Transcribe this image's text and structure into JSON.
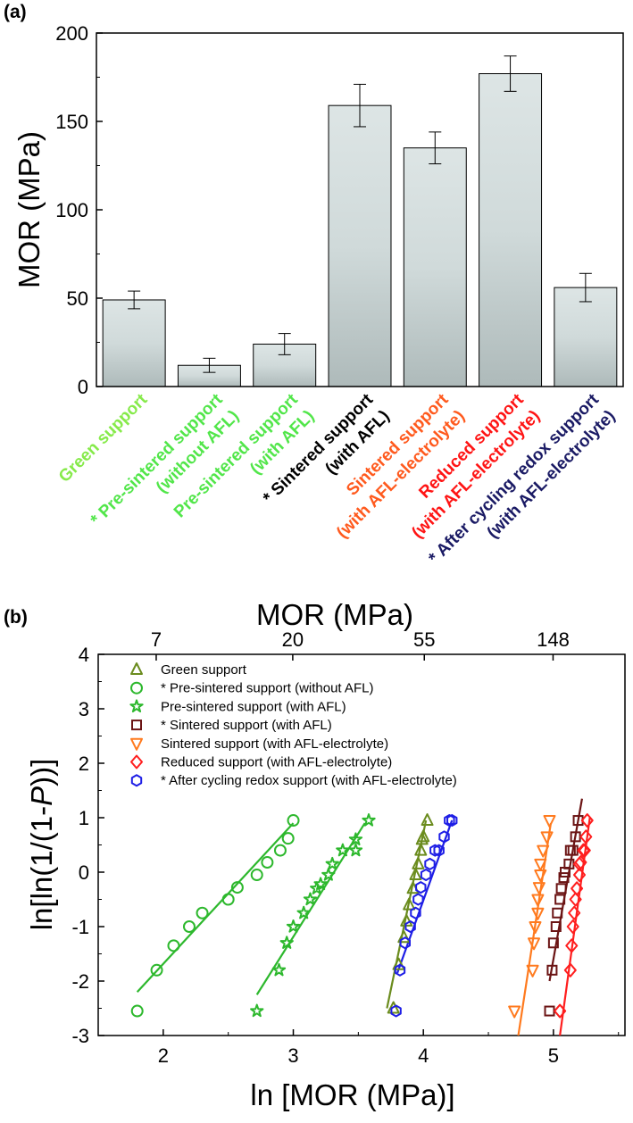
{
  "chart_data": [
    {
      "panel": "(a)",
      "type": "bar",
      "ylabel": "MOR (MPa)",
      "ylim": [
        0,
        200
      ],
      "yticks": [
        0,
        50,
        100,
        150,
        200
      ],
      "bar_fill": "#c8d2d2",
      "categories": [
        {
          "lines": [
            "Green support"
          ],
          "color": "#86ea4a"
        },
        {
          "lines": [
            "* Pre-sintered support",
            "(without AFL)"
          ],
          "color": "#52e64a"
        },
        {
          "lines": [
            "Pre-sintered support",
            "(with AFL)"
          ],
          "color": "#52e64a"
        },
        {
          "lines": [
            "* Sintered support",
            "(with AFL)"
          ],
          "color": "#000000"
        },
        {
          "lines": [
            "Sintered support",
            "(with AFL-electrolyte)"
          ],
          "color": "#ff5a1e"
        },
        {
          "lines": [
            "Reduced support",
            "(with AFL-electrolyte)"
          ],
          "color": "#ff1414"
        },
        {
          "lines": [
            "* After cycling redox support",
            "(with AFL-electrolyte)"
          ],
          "color": "#1a1a64"
        }
      ],
      "values": [
        49,
        12,
        24,
        159,
        135,
        177,
        56
      ],
      "errors": [
        5,
        4,
        6,
        12,
        9,
        10,
        8
      ]
    },
    {
      "panel": "(b)",
      "type": "scatter",
      "xlabel": "ln [MOR (MPa)]",
      "ylabel": "ln[ln(1/(1-P))]",
      "top_xlabel": "MOR (MPa)",
      "xlim": [
        1.5,
        5.55
      ],
      "ylim": [
        -3,
        4
      ],
      "xticks": [
        2,
        3,
        4,
        5
      ],
      "yticks": [
        -3,
        -2,
        -1,
        0,
        1,
        2,
        3,
        4
      ],
      "top_xticks": [
        {
          "label": "7",
          "ln": 1.9459
        },
        {
          "label": "20",
          "ln": 2.9957
        },
        {
          "label": "55",
          "ln": 4.0073
        },
        {
          "label": "148",
          "ln": 4.9972
        }
      ],
      "series": [
        {
          "name": "Green support",
          "marker": "triangle-up",
          "color": "#6b8c1e",
          "x": [
            3.77,
            3.81,
            3.85,
            3.87,
            3.89,
            3.92,
            3.94,
            3.96,
            3.98,
            3.99,
            4.0,
            4.03
          ],
          "y": [
            -2.5,
            -1.7,
            -1.2,
            -0.9,
            -0.6,
            -0.3,
            -0.05,
            0.15,
            0.4,
            0.6,
            0.65,
            0.95
          ],
          "fit": [
            [
              3.72,
              -2.5
            ],
            [
              4.02,
              0.95
            ]
          ]
        },
        {
          "name": "* Pre-sintered support (without AFL)",
          "marker": "circle",
          "color": "#2db82d",
          "x": [
            1.8,
            1.95,
            2.08,
            2.2,
            2.3,
            2.5,
            2.57,
            2.72,
            2.8,
            2.9,
            2.96,
            3.0
          ],
          "y": [
            -2.55,
            -1.8,
            -1.35,
            -1.0,
            -0.75,
            -0.5,
            -0.28,
            -0.05,
            0.18,
            0.4,
            0.62,
            0.95
          ],
          "fit": [
            [
              1.8,
              -2.2
            ],
            [
              3.0,
              0.9
            ]
          ]
        },
        {
          "name": "Pre-sintered support (with AFL)",
          "marker": "star",
          "color": "#2db82d",
          "x": [
            2.72,
            2.89,
            2.95,
            3.0,
            3.08,
            3.13,
            3.18,
            3.21,
            3.27,
            3.3,
            3.38,
            3.48,
            3.48,
            3.58
          ],
          "y": [
            -2.55,
            -1.8,
            -1.3,
            -1.0,
            -0.75,
            -0.5,
            -0.3,
            -0.22,
            -0.05,
            0.15,
            0.4,
            0.6,
            0.4,
            0.95
          ],
          "fit": [
            [
              2.72,
              -2.25
            ],
            [
              3.55,
              0.9
            ]
          ]
        },
        {
          "name": "* Sintered support (with AFL)",
          "marker": "square",
          "color": "#6b1414",
          "x": [
            4.97,
            4.99,
            5.0,
            5.02,
            5.03,
            5.05,
            5.06,
            5.08,
            5.09,
            5.12,
            5.13,
            5.15,
            5.17,
            5.19
          ],
          "y": [
            -2.55,
            -1.8,
            -1.3,
            -1.0,
            -0.75,
            -0.5,
            -0.3,
            -0.1,
            0.0,
            0.15,
            0.4,
            0.4,
            0.65,
            0.95
          ],
          "fit": [
            [
              4.97,
              -2.0
            ],
            [
              5.22,
              1.35
            ]
          ]
        },
        {
          "name": "Sintered support (with AFL-electrolyte)",
          "marker": "triangle-down",
          "color": "#ff7a1e",
          "x": [
            4.7,
            4.84,
            4.85,
            4.86,
            4.88,
            4.88,
            4.89,
            4.9,
            4.9,
            4.92,
            4.95,
            4.97
          ],
          "y": [
            -2.55,
            -1.8,
            -1.3,
            -1.0,
            -0.75,
            -0.5,
            -0.28,
            -0.05,
            0.15,
            0.4,
            0.65,
            0.95
          ],
          "fit": [
            [
              4.73,
              -3.0
            ],
            [
              4.98,
              0.9
            ]
          ]
        },
        {
          "name": "Reduced support (with AFL-electrolyte)",
          "marker": "diamond",
          "color": "#ff1e1e",
          "x": [
            5.05,
            5.13,
            5.14,
            5.15,
            5.16,
            5.17,
            5.18,
            5.2,
            5.2,
            5.21,
            5.23,
            5.24,
            5.25,
            5.26
          ],
          "y": [
            -2.55,
            -1.8,
            -1.35,
            -1.0,
            -0.75,
            -0.5,
            -0.3,
            -0.05,
            0.15,
            0.18,
            0.4,
            0.4,
            0.65,
            0.95
          ],
          "fit": [
            [
              5.05,
              -3.0
            ],
            [
              5.28,
              1.0
            ]
          ]
        },
        {
          "name": "* After cycling redox support (with AFL-electrolyte)",
          "marker": "hexagon",
          "color": "#1e1ee6",
          "x": [
            3.79,
            3.82,
            3.86,
            3.9,
            3.94,
            3.96,
            3.98,
            4.02,
            4.05,
            4.09,
            4.12,
            4.16,
            4.2,
            4.22
          ],
          "y": [
            -2.55,
            -1.8,
            -1.3,
            -1.0,
            -0.75,
            -0.5,
            -0.28,
            -0.05,
            0.15,
            0.4,
            0.4,
            0.65,
            0.95,
            0.95
          ],
          "fit": [
            [
              3.8,
              -1.85
            ],
            [
              4.22,
              0.95
            ]
          ]
        }
      ]
    }
  ]
}
